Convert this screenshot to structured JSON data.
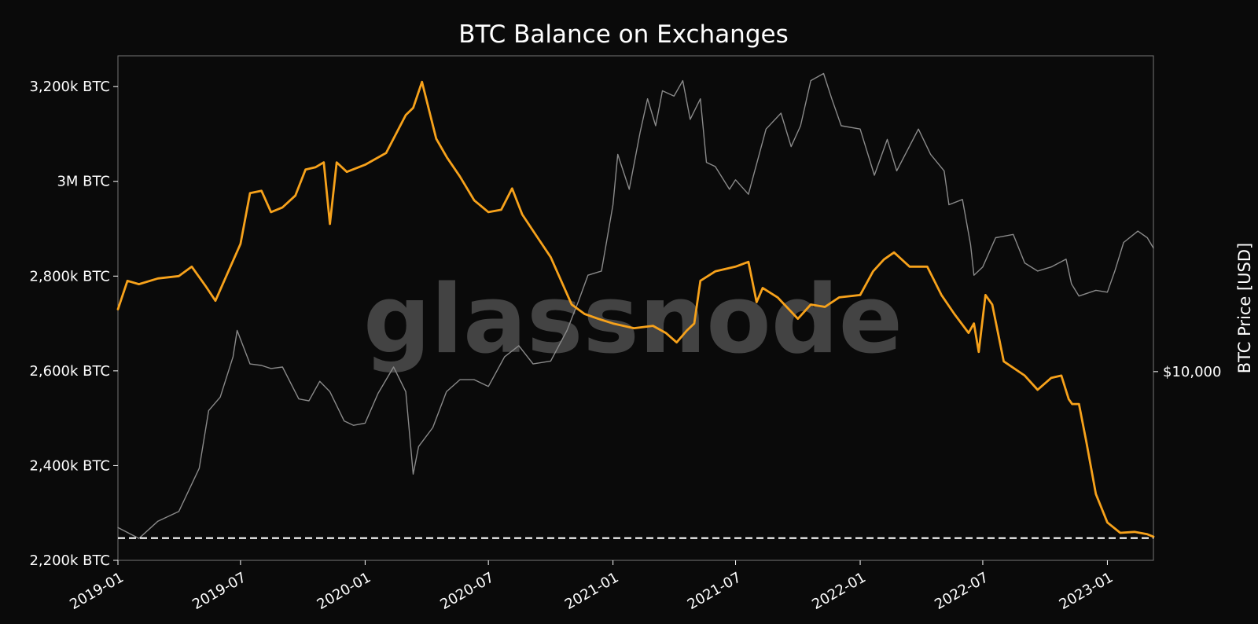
{
  "chart_data": {
    "type": "line",
    "title": "BTC Balance on Exchanges",
    "watermark": "glassnode",
    "xlabel": "",
    "ylabel_left": "",
    "ylabel_right": "BTC Price [USD]",
    "xlim": [
      "2019-01-01",
      "2023-03-10"
    ],
    "ylim_left": [
      2200,
      3265
    ],
    "y_unit": "thousand BTC",
    "x_ticks": [
      "2019-01",
      "2019-07",
      "2020-01",
      "2020-07",
      "2021-01",
      "2021-07",
      "2022-01",
      "2022-07",
      "2023-01"
    ],
    "y_ticks_left": [
      {
        "value": 2200,
        "label": "2,200k BTC"
      },
      {
        "value": 2400,
        "label": "2,400k BTC"
      },
      {
        "value": 2600,
        "label": "2,600k BTC"
      },
      {
        "value": 2800,
        "label": "2,800k BTC"
      },
      {
        "value": 3000,
        "label": "3M BTC"
      },
      {
        "value": 3200,
        "label": "3,200k BTC"
      }
    ],
    "y_ticks_right": [
      {
        "value": 10000,
        "label": "$10,000"
      }
    ],
    "reference_line": {
      "axis": "left",
      "value": 2247,
      "style": "dashed",
      "color": "#ffffff"
    },
    "grid": false,
    "legend": "none",
    "series": [
      {
        "axis": "left",
        "color": "#f7a21b",
        "x": [
          "2019-01-01",
          "2019-01-15",
          "2019-02-01",
          "2019-03-01",
          "2019-04-01",
          "2019-04-20",
          "2019-05-10",
          "2019-05-25",
          "2019-06-10",
          "2019-07-01",
          "2019-07-15",
          "2019-08-01",
          "2019-08-15",
          "2019-09-01",
          "2019-09-20",
          "2019-10-05",
          "2019-10-20",
          "2019-11-01",
          "2019-11-10",
          "2019-11-20",
          "2019-12-05",
          "2020-01-01",
          "2020-02-01",
          "2020-03-01",
          "2020-03-12",
          "2020-03-25",
          "2020-04-15",
          "2020-05-01",
          "2020-05-20",
          "2020-06-10",
          "2020-07-01",
          "2020-07-20",
          "2020-08-05",
          "2020-08-20",
          "2020-09-10",
          "2020-10-01",
          "2020-11-01",
          "2020-11-20",
          "2020-12-10",
          "2021-01-01",
          "2021-02-01",
          "2021-03-01",
          "2021-03-20",
          "2021-04-05",
          "2021-04-20",
          "2021-05-01",
          "2021-05-10",
          "2021-06-01",
          "2021-07-01",
          "2021-07-20",
          "2021-08-01",
          "2021-08-10",
          "2021-09-01",
          "2021-10-01",
          "2021-10-20",
          "2021-11-10",
          "2021-12-01",
          "2022-01-01",
          "2022-01-20",
          "2022-02-05",
          "2022-02-20",
          "2022-03-15",
          "2022-04-10",
          "2022-05-01",
          "2022-05-20",
          "2022-06-10",
          "2022-06-18",
          "2022-06-25",
          "2022-07-05",
          "2022-07-15",
          "2022-08-01",
          "2022-09-01",
          "2022-09-20",
          "2022-10-10",
          "2022-10-25",
          "2022-11-05",
          "2022-11-10",
          "2022-11-20",
          "2022-12-01",
          "2022-12-15",
          "2023-01-01",
          "2023-01-20",
          "2023-02-10",
          "2023-03-01",
          "2023-03-10"
        ],
        "values": [
          2730,
          2790,
          2783,
          2795,
          2800,
          2820,
          2780,
          2748,
          2800,
          2868,
          2975,
          2980,
          2935,
          2945,
          2970,
          3025,
          3030,
          3040,
          2910,
          3040,
          3020,
          3035,
          3060,
          3140,
          3155,
          3210,
          3090,
          3050,
          3010,
          2960,
          2935,
          2940,
          2985,
          2930,
          2885,
          2840,
          2740,
          2720,
          2710,
          2700,
          2690,
          2695,
          2680,
          2660,
          2685,
          2700,
          2790,
          2810,
          2820,
          2830,
          2745,
          2775,
          2755,
          2710,
          2740,
          2735,
          2755,
          2760,
          2810,
          2835,
          2850,
          2820,
          2820,
          2760,
          2720,
          2680,
          2700,
          2640,
          2760,
          2740,
          2620,
          2590,
          2560,
          2585,
          2590,
          2540,
          2530,
          2530,
          2450,
          2340,
          2280,
          2258,
          2260,
          2255,
          2250
        ]
      },
      {
        "axis": "right",
        "color": "#8a8a8a",
        "price_scale": "log",
        "x": [
          "2019-01-01",
          "2019-02-01",
          "2019-03-01",
          "2019-04-01",
          "2019-05-01",
          "2019-05-15",
          "2019-06-01",
          "2019-06-20",
          "2019-06-26",
          "2019-07-15",
          "2019-08-01",
          "2019-08-15",
          "2019-09-01",
          "2019-09-25",
          "2019-10-10",
          "2019-10-26",
          "2019-11-10",
          "2019-12-01",
          "2019-12-15",
          "2020-01-01",
          "2020-01-20",
          "2020-02-12",
          "2020-03-01",
          "2020-03-12",
          "2020-03-20",
          "2020-04-10",
          "2020-04-30",
          "2020-05-20",
          "2020-06-10",
          "2020-07-01",
          "2020-07-25",
          "2020-08-15",
          "2020-09-05",
          "2020-10-01",
          "2020-10-25",
          "2020-11-10",
          "2020-11-25",
          "2020-12-15",
          "2021-01-01",
          "2021-01-08",
          "2021-01-25",
          "2021-02-10",
          "2021-02-21",
          "2021-03-05",
          "2021-03-15",
          "2021-04-01",
          "2021-04-14",
          "2021-04-25",
          "2021-05-10",
          "2021-05-19",
          "2021-06-01",
          "2021-06-22",
          "2021-07-01",
          "2021-07-20",
          "2021-08-15",
          "2021-09-06",
          "2021-09-21",
          "2021-10-05",
          "2021-10-20",
          "2021-11-08",
          "2021-11-20",
          "2021-12-04",
          "2022-01-01",
          "2022-01-22",
          "2022-02-10",
          "2022-02-24",
          "2022-03-28",
          "2022-04-15",
          "2022-05-05",
          "2022-05-12",
          "2022-06-01",
          "2022-06-13",
          "2022-06-18",
          "2022-07-01",
          "2022-07-20",
          "2022-08-15",
          "2022-09-01",
          "2022-09-20",
          "2022-10-10",
          "2022-11-01",
          "2022-11-09",
          "2022-11-20",
          "2022-12-15",
          "2023-01-01",
          "2023-01-12",
          "2023-01-25",
          "2023-02-15",
          "2023-03-01",
          "2023-03-10"
        ],
        "values": [
          3700,
          3450,
          3850,
          4100,
          5400,
          7800,
          8500,
          11000,
          13000,
          10500,
          10400,
          10200,
          10300,
          8400,
          8300,
          9400,
          8800,
          7300,
          7100,
          7200,
          8700,
          10300,
          8800,
          5200,
          6200,
          7000,
          8800,
          9500,
          9500,
          9100,
          11000,
          11800,
          10500,
          10700,
          13000,
          15500,
          18500,
          19000,
          29000,
          40000,
          32000,
          46000,
          57000,
          48000,
          60000,
          58000,
          64000,
          50000,
          57000,
          38000,
          37000,
          32000,
          34000,
          31000,
          47000,
          52000,
          42000,
          48000,
          64000,
          67000,
          57000,
          48000,
          47000,
          35000,
          44000,
          36000,
          47000,
          40000,
          36000,
          29000,
          30000,
          22500,
          18500,
          19500,
          23500,
          24000,
          20000,
          19000,
          19500,
          20500,
          17500,
          16200,
          16800,
          16600,
          19000,
          22800,
          24500,
          23500,
          22000
        ]
      }
    ]
  }
}
